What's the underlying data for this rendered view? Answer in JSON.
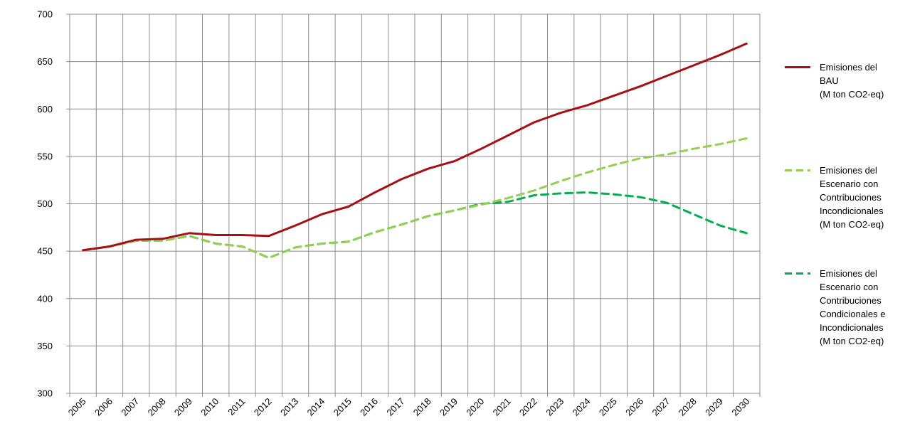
{
  "chart_data": {
    "type": "line",
    "title": "",
    "xlabel": "",
    "ylabel": "",
    "ylim": [
      300,
      700
    ],
    "yticks": [
      300,
      350,
      400,
      450,
      500,
      550,
      600,
      650,
      700
    ],
    "grid": true,
    "legend_position": "right",
    "x": [
      "2005",
      "2006",
      "2007",
      "2008",
      "2009",
      "2010",
      "2011",
      "2012",
      "2013",
      "2014",
      "2015",
      "2016",
      "2017",
      "2018",
      "2019",
      "2020",
      "2021",
      "2022",
      "2023",
      "2024",
      "2025",
      "2026",
      "2027",
      "2028",
      "2029",
      "2030"
    ],
    "series": [
      {
        "name": "Emisiones del BAU (M ton CO2-eq)",
        "legend_lines": [
          "Emisiones del",
          "BAU",
          "(M ton CO2-eq)"
        ],
        "color": "#a50f15",
        "style": "solid",
        "values": [
          451,
          455,
          462,
          463,
          469,
          467,
          467,
          466,
          477,
          489,
          497,
          512,
          526,
          537,
          545,
          558,
          572,
          586,
          596,
          604,
          614,
          624,
          635,
          646,
          657,
          669
        ]
      },
      {
        "name": "Emisiones del Escenario con Contribuciones Incondicionales (M ton CO2-eq)",
        "legend_lines": [
          "Emisiones del",
          "Escenario con",
          "Contribuciones",
          "Incondicionales",
          "(M ton CO2-eq)"
        ],
        "color": "#92d050",
        "style": "dashed",
        "values": [
          451,
          455,
          461,
          461,
          466,
          458,
          455,
          443,
          454,
          458,
          460,
          470,
          478,
          487,
          493,
          499,
          506,
          514,
          524,
          533,
          541,
          548,
          552,
          558,
          563,
          569
        ]
      },
      {
        "name": "Emisiones del Escenario con Contribuciones Condicionales e Incondicionales (M ton CO2-eq)",
        "legend_lines": [
          "Emisiones del",
          "Escenario con",
          "Contribuciones",
          "Condicionales e",
          "Incondicionales",
          "(M ton CO2-eq)"
        ],
        "color": "#00b050",
        "style": "dashed",
        "values": [
          451,
          455,
          461,
          461,
          466,
          458,
          455,
          443,
          454,
          458,
          460,
          470,
          478,
          487,
          493,
          500,
          502,
          509,
          511,
          512,
          510,
          507,
          501,
          489,
          477,
          469
        ]
      }
    ]
  }
}
